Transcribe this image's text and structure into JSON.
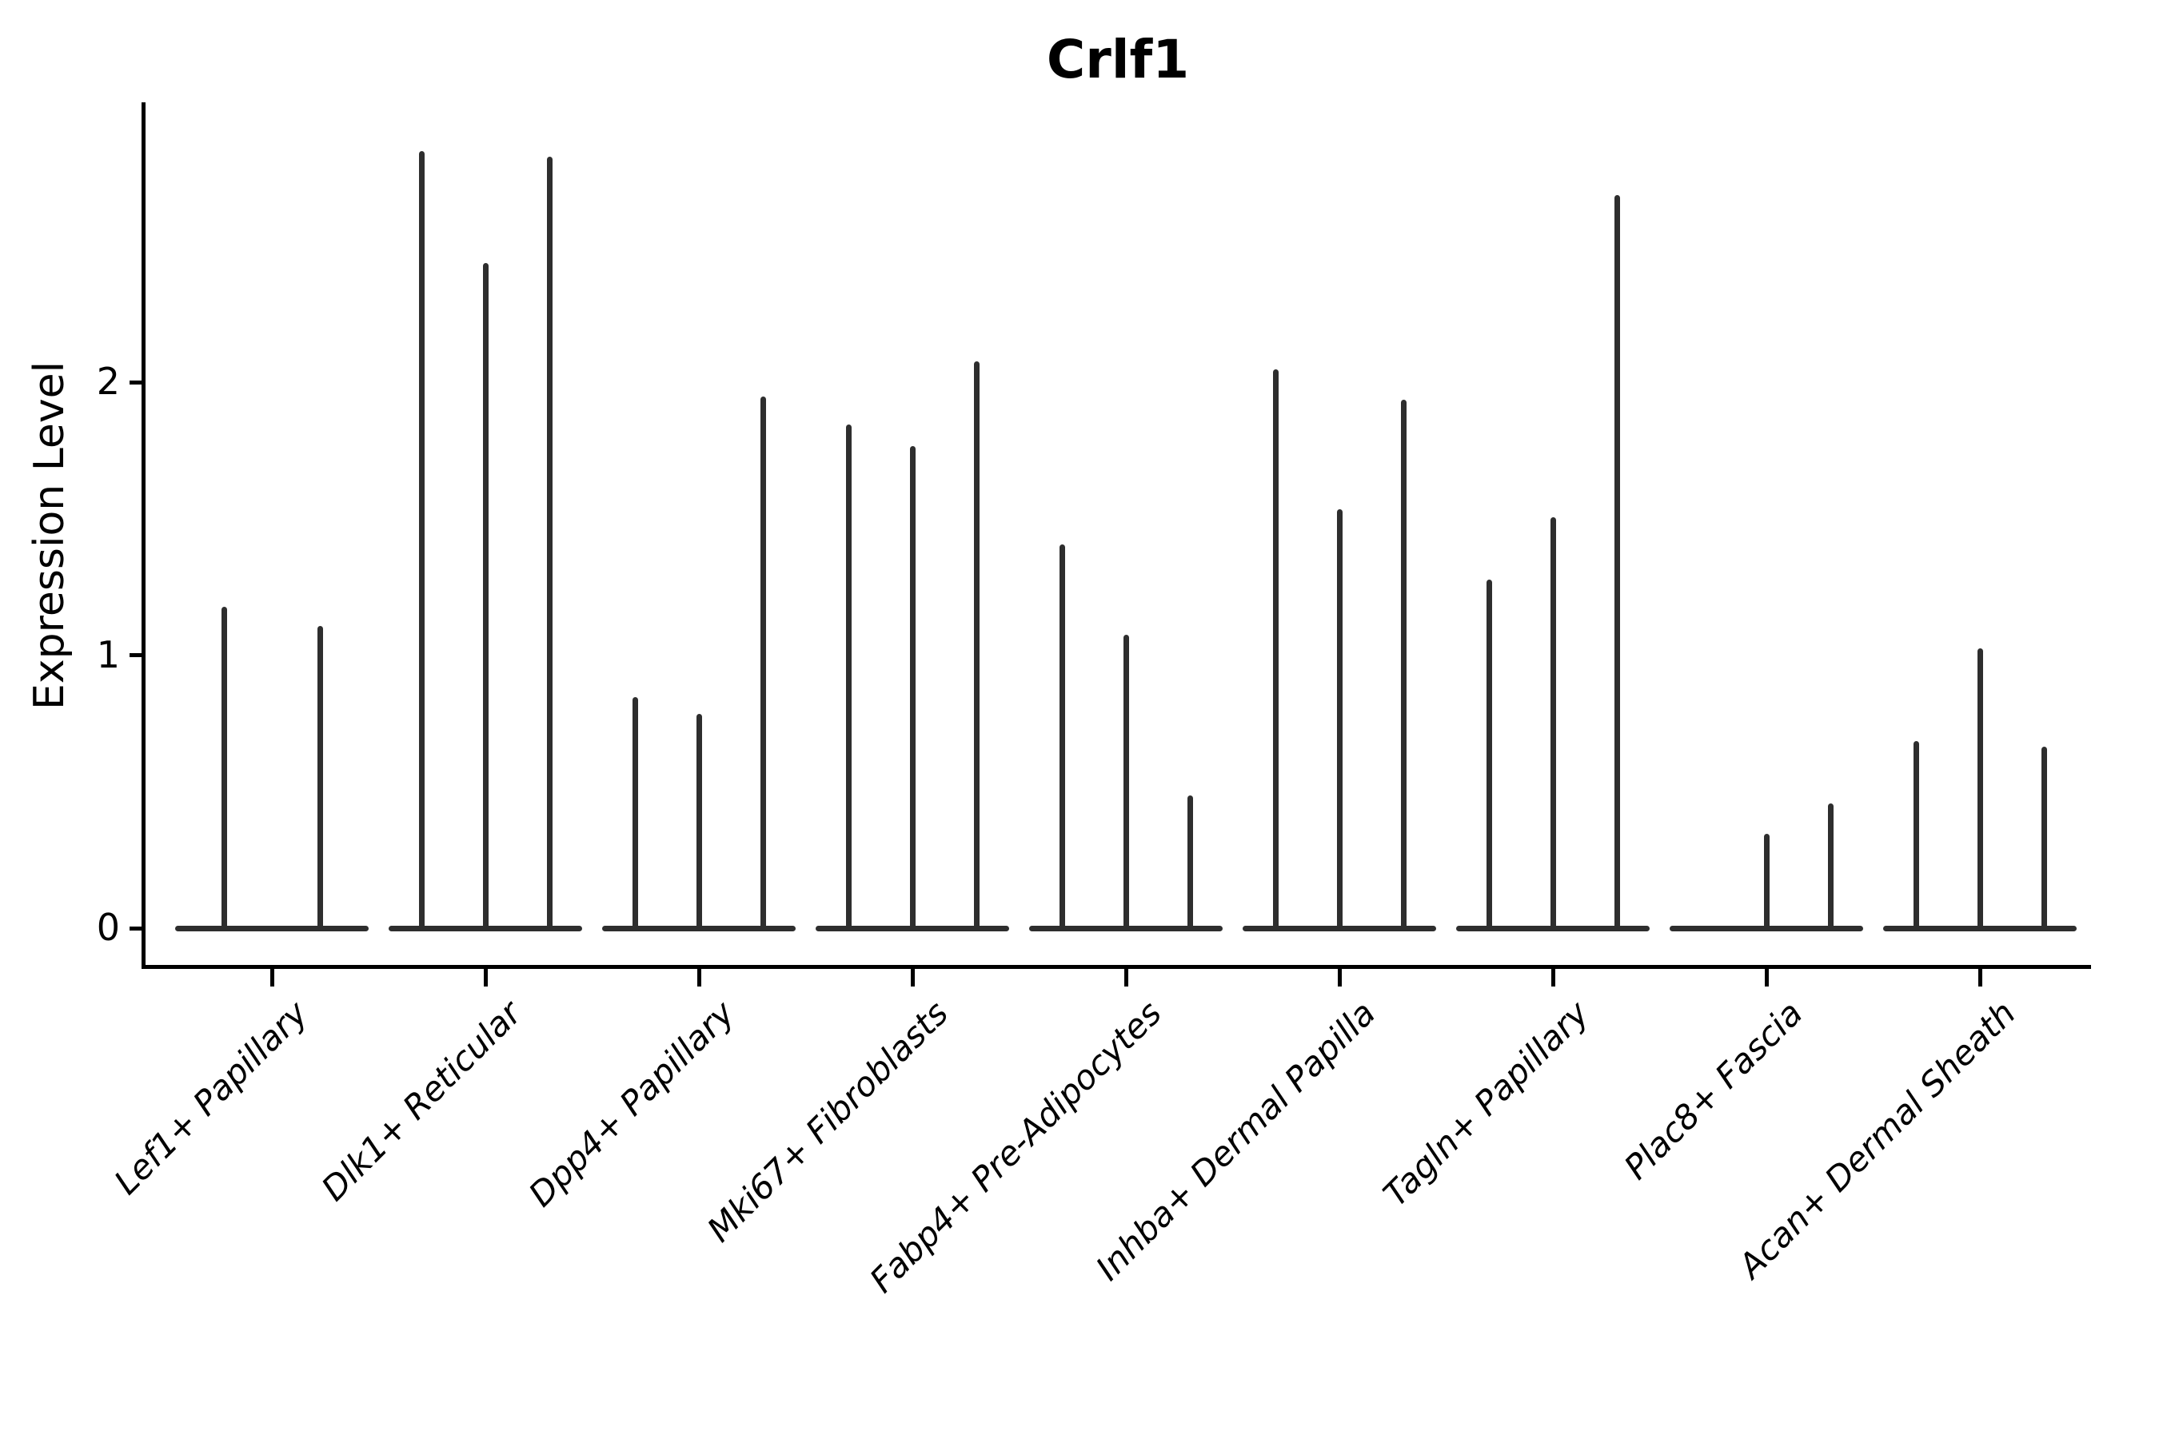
{
  "title": "Crlf1",
  "y_axis": {
    "label": "Expression Level",
    "ticks": [
      "0",
      "1",
      "2"
    ],
    "tick_values": [
      0,
      1,
      2
    ]
  },
  "style": {
    "violin_color": "#2e2e2e",
    "axis_color": "#000000",
    "background": "#ffffff"
  },
  "chart_data": {
    "type": "violin",
    "title": "Crlf1",
    "xlabel": "",
    "ylabel": "Expression Level",
    "ylim": [
      -0.15,
      3.02
    ],
    "grid": false,
    "legend": "none",
    "description": "Seurat-style single-gene violin plot; each category shows 2-3 razor-thin violins (spikes) rising from a flat base at 0; peak values are the maximum expression level reached by each violin.",
    "categories": [
      "Lef1+ Papillary",
      "Dlk1+ Reticular",
      "Dpp4+ Papillary",
      "Mki67+ Fibroblasts",
      "Fabp4+ Pre-Adipocytes",
      "Inhba+ Dermal Papilla",
      "Tagln+ Papillary",
      "Plac8+ Fascia",
      "Acan+ Dermal Sheath"
    ],
    "groups": [
      {
        "label": "Lef1+ Papillary",
        "violin_peaks": [
          1.17,
          1.1
        ]
      },
      {
        "label": "Dlk1+ Reticular",
        "violin_peaks": [
          2.84,
          2.43,
          2.82
        ]
      },
      {
        "label": "Dpp4+ Papillary",
        "violin_peaks": [
          0.84,
          0.78,
          1.94
        ]
      },
      {
        "label": "Mki67+ Fibroblasts",
        "violin_peaks": [
          1.84,
          1.76,
          2.07
        ]
      },
      {
        "label": "Fabp4+ Pre-Adipocytes",
        "violin_peaks": [
          1.4,
          1.07,
          0.48
        ]
      },
      {
        "label": "Inhba+ Dermal Papilla",
        "violin_peaks": [
          2.04,
          1.53,
          1.93
        ]
      },
      {
        "label": "Tagln+ Papillary",
        "violin_peaks": [
          1.27,
          1.5,
          2.68
        ]
      },
      {
        "label": "Plac8+ Fascia",
        "violin_peaks": [
          0.0,
          0.34,
          0.45
        ]
      },
      {
        "label": "Acan+ Dermal Sheath",
        "violin_peaks": [
          0.68,
          1.02,
          0.66
        ]
      }
    ]
  }
}
